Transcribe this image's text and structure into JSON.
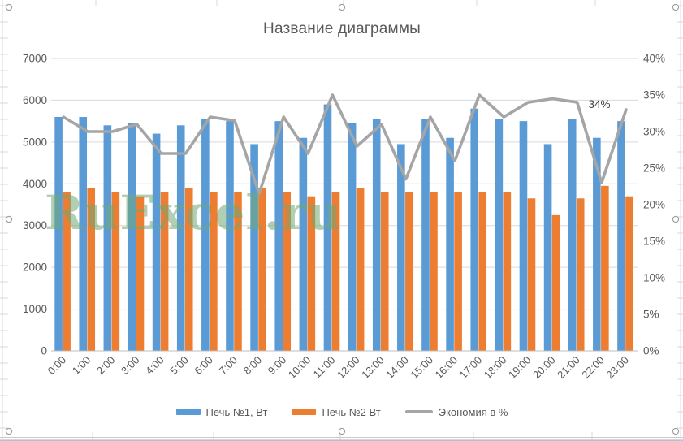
{
  "chart_data": {
    "type": "combo",
    "title": "Название диаграммы",
    "categories": [
      "0:00",
      "1:00",
      "2:00",
      "3:00",
      "4:00",
      "5:00",
      "6:00",
      "7:00",
      "8:00",
      "9:00",
      "10:00",
      "11:00",
      "12:00",
      "13:00",
      "14:00",
      "15:00",
      "16:00",
      "17:00",
      "18:00",
      "19:00",
      "20:00",
      "21:00",
      "22:00",
      "23:00"
    ],
    "series": [
      {
        "name": "Печь №1, Вт",
        "type": "bar",
        "axis": "left",
        "color": "#5b9bd5",
        "values": [
          5600,
          5600,
          5400,
          5450,
          5200,
          5400,
          5550,
          5500,
          4950,
          5500,
          5100,
          5900,
          5450,
          5550,
          4950,
          5550,
          5100,
          5800,
          5550,
          5500,
          4950,
          5550,
          5100,
          5500
        ]
      },
      {
        "name": "Печь №2 Вт",
        "type": "bar",
        "axis": "left",
        "color": "#ed7d31",
        "values": [
          3800,
          3900,
          3800,
          3700,
          3800,
          3900,
          3800,
          3800,
          3900,
          3800,
          3700,
          3800,
          3900,
          3800,
          3800,
          3800,
          3800,
          3800,
          3800,
          3650,
          3250,
          3650,
          3950,
          3700
        ]
      },
      {
        "name": "Экономия в %",
        "type": "line",
        "axis": "right",
        "color": "#a5a5a5",
        "values": [
          32,
          30,
          30,
          31,
          27,
          27,
          32,
          31.5,
          21.5,
          32,
          27,
          35,
          28,
          31,
          23.5,
          32,
          26,
          35,
          32,
          34,
          34.5,
          34,
          23,
          33
        ]
      }
    ],
    "left_axis": {
      "min": 0,
      "max": 7000,
      "step": 1000,
      "tick_labels": [
        "0",
        "1000",
        "2000",
        "3000",
        "4000",
        "5000",
        "6000",
        "7000"
      ]
    },
    "right_axis": {
      "min": 0,
      "max": 40,
      "step": 5,
      "tick_labels": [
        "0%",
        "5%",
        "10%",
        "15%",
        "20%",
        "25%",
        "30%",
        "35%",
        "40%"
      ]
    },
    "grid": true,
    "legend_position": "bottom",
    "annotations": [
      {
        "text": "34%",
        "series": "Экономия в %",
        "category": "21:00"
      }
    ]
  },
  "overlays": {
    "watermark_text": "RuExcel.ru",
    "point_label_text": "34%"
  },
  "colors": {
    "title_text": "#595959",
    "axis_text": "#595959",
    "chart_gridline": "#d9d9d9",
    "sheet_gridline": "#d9d9d9",
    "watermark_green": "#6fa874"
  }
}
